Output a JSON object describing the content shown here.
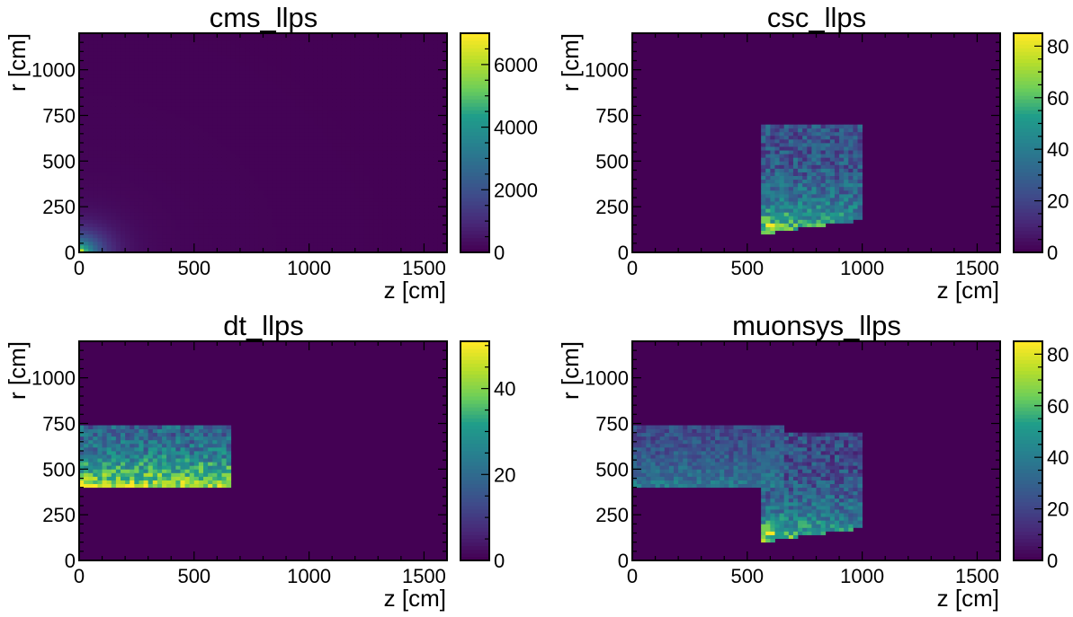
{
  "colors": {
    "viridis": [
      "#440154",
      "#482777",
      "#3f4a8a",
      "#31678e",
      "#26838f",
      "#1f9d8a",
      "#6cce5a",
      "#b6de2b",
      "#fee825"
    ],
    "background": "#440154"
  },
  "chart_data": [
    {
      "type": "heatmap",
      "title": "cms_llps",
      "xlabel": "z [cm]",
      "ylabel": "r [cm]",
      "xlim": [
        0,
        1600
      ],
      "ylim": [
        0,
        1200
      ],
      "xticks": [
        0,
        500,
        1000,
        1500
      ],
      "yticks": [
        0,
        250,
        500,
        750,
        1000
      ],
      "colorbar": {
        "min": 0,
        "max": 7000,
        "ticks": [
          0,
          2000,
          4000,
          6000
        ]
      },
      "regions": [
        {
          "shape": "radial_falloff",
          "peak": 7000,
          "center": [
            0,
            0
          ],
          "falloff_cm": 70,
          "floor": 150
        },
        {
          "shape": "rect",
          "z": [
            0,
            30
          ],
          "r": [
            0,
            20
          ],
          "level": 6200
        }
      ]
    },
    {
      "type": "heatmap",
      "title": "csc_llps",
      "xlabel": "z [cm]",
      "ylabel": "r [cm]",
      "xlim": [
        0,
        1600
      ],
      "ylim": [
        0,
        1200
      ],
      "xticks": [
        0,
        500,
        1000,
        1500
      ],
      "yticks": [
        0,
        250,
        500,
        750,
        1000
      ],
      "colorbar": {
        "min": 0,
        "max": 85,
        "ticks": [
          0,
          20,
          40,
          60,
          80
        ]
      },
      "regions": [
        {
          "shape": "slanted",
          "z": [
            560,
            1010
          ],
          "r_top": 700,
          "r_bottom_at_zmin": 100,
          "r_bottom_at_zmax": 180,
          "base": 24,
          "bright_near_bottom": 45,
          "noise": 14
        }
      ],
      "hotspots": [
        {
          "z": 600,
          "r": 150,
          "value": 84
        },
        {
          "z": 580,
          "r": 180,
          "value": 65
        }
      ]
    },
    {
      "type": "heatmap",
      "title": "dt_llps",
      "xlabel": "z [cm]",
      "ylabel": "r [cm]",
      "xlim": [
        0,
        1600
      ],
      "ylim": [
        0,
        1200
      ],
      "xticks": [
        0,
        500,
        1000,
        1500
      ],
      "yticks": [
        0,
        250,
        500,
        750,
        1000
      ],
      "colorbar": {
        "min": 0,
        "max": 51,
        "ticks": [
          0,
          20,
          40
        ]
      },
      "regions": [
        {
          "shape": "rect",
          "z": [
            0,
            660
          ],
          "r": [
            400,
            750
          ],
          "base": 18,
          "bright_near_bottom": 28,
          "noise": 9
        }
      ],
      "hotspots": [
        {
          "z": 40,
          "r": 410,
          "value": 50
        },
        {
          "z": 120,
          "r": 410,
          "value": 48
        },
        {
          "z": 180,
          "r": 410,
          "value": 47
        }
      ]
    },
    {
      "type": "heatmap",
      "title": "muonsys_llps",
      "xlabel": "z [cm]",
      "ylabel": "r [cm]",
      "xlim": [
        0,
        1600
      ],
      "ylim": [
        0,
        1200
      ],
      "xticks": [
        0,
        500,
        1000,
        1500
      ],
      "yticks": [
        0,
        250,
        500,
        750,
        1000
      ],
      "colorbar": {
        "min": 0,
        "max": 85,
        "ticks": [
          0,
          20,
          40,
          60,
          80
        ]
      },
      "regions": [
        {
          "shape": "rect",
          "z": [
            0,
            660
          ],
          "r": [
            400,
            750
          ],
          "base": 22,
          "bright_near_bottom": 18,
          "noise": 10
        },
        {
          "shape": "slanted",
          "z": [
            560,
            1010
          ],
          "r_top": 700,
          "r_bottom_at_zmin": 100,
          "r_bottom_at_zmax": 180,
          "base": 22,
          "bright_near_bottom": 45,
          "noise": 14
        }
      ],
      "hotspots": [
        {
          "z": 600,
          "r": 150,
          "value": 84
        },
        {
          "z": 580,
          "r": 180,
          "value": 65
        }
      ]
    }
  ]
}
